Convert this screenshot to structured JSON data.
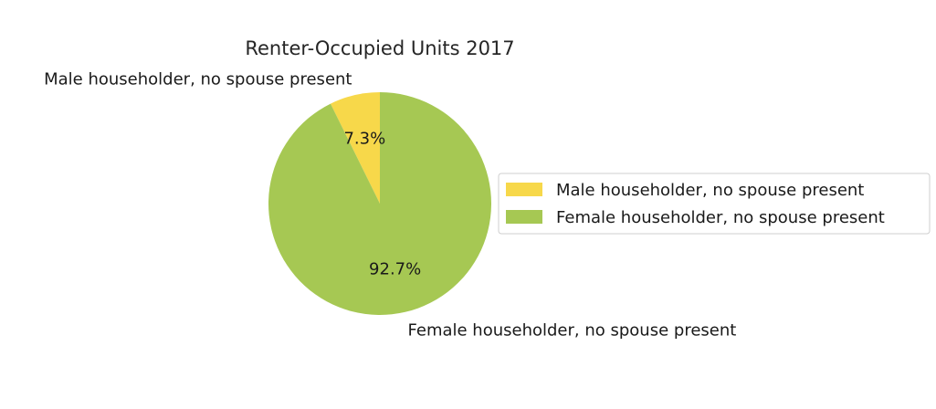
{
  "chart_data": {
    "type": "pie",
    "title": "Renter-Occupied Units 2017",
    "slices": [
      {
        "label": "Male householder, no spouse present",
        "value": 7.3,
        "pct_label": "7.3%",
        "color": "#f7d84a"
      },
      {
        "label": "Female householder, no spouse present",
        "value": 92.7,
        "pct_label": "92.7%",
        "color": "#a6c853"
      }
    ],
    "start_angle_deg": 90,
    "direction": "counterclockwise",
    "legend_position": "center-right"
  }
}
